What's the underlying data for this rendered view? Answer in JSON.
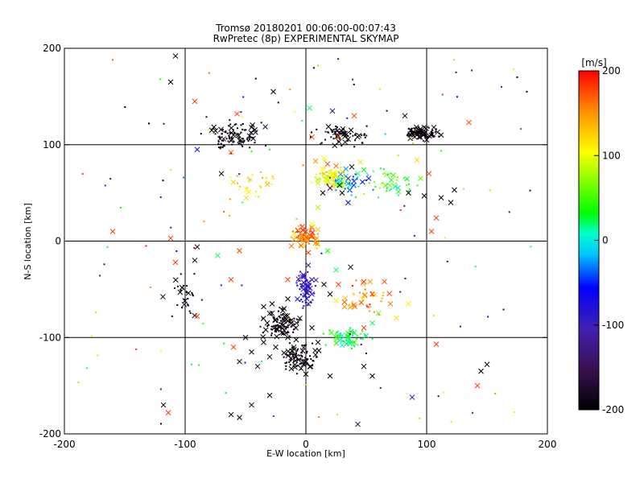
{
  "title_line1": "Tromsø 20180201 00:06:00-00:07:43",
  "title_line2": "RwPretec (8p) EXPERIMENTAL SKYMAP",
  "chart_data": {
    "type": "scatter",
    "title": "Tromsø 20180201 00:06:00-00:07:43",
    "subtitle": "RwPretec (8p) EXPERIMENTAL SKYMAP",
    "xlabel": "E-W location [km]",
    "ylabel": "N-S location [km]",
    "xlim": [
      -200,
      200
    ],
    "ylim": [
      -200,
      200
    ],
    "xticks": [
      -200,
      -100,
      0,
      100,
      200
    ],
    "yticks": [
      -200,
      -100,
      0,
      100,
      200
    ],
    "grid": true,
    "colorbar": {
      "label": "[m/s]",
      "range": [
        -200,
        200
      ],
      "ticks": [
        200,
        100,
        0,
        -100,
        -200
      ],
      "colormap": [
        "#000000",
        "#5a1e7a",
        "#0000ff",
        "#00ffff",
        "#00ff00",
        "#ffff00",
        "#ff8000",
        "#ff0000"
      ]
    },
    "markers": {
      "small": "dot",
      "large": "x"
    },
    "series": [
      {
        "cx": -160,
        "cy": 188,
        "v": 170,
        "m": "dot"
      },
      {
        "cx": -108,
        "cy": 192,
        "v": -200,
        "m": "x"
      },
      {
        "cx": -112,
        "cy": 165,
        "v": -200,
        "m": "x"
      },
      {
        "cx": 175,
        "cy": 170,
        "v": -200,
        "m": "dot"
      },
      {
        "cx": 162,
        "cy": 160,
        "v": -100,
        "m": "dot"
      },
      {
        "cx": 183,
        "cy": 155,
        "v": -200,
        "m": "dot"
      },
      {
        "cx": -130,
        "cy": 122,
        "v": -200,
        "m": "dot"
      },
      {
        "cx": -92,
        "cy": 145,
        "v": 180,
        "m": "x"
      },
      {
        "cx": -57,
        "cy": 132,
        "v": 180,
        "m": "x"
      },
      {
        "cx": -78,
        "cy": 115,
        "v": -200,
        "m": "x"
      },
      {
        "cx": -60,
        "cy": 110,
        "v": -200,
        "m": "x"
      },
      {
        "cx": -45,
        "cy": 118,
        "v": -200,
        "m": "x"
      },
      {
        "cx": -90,
        "cy": 95,
        "v": -60,
        "m": "x"
      },
      {
        "cx": -70,
        "cy": 70,
        "v": -200,
        "m": "x"
      },
      {
        "cx": -62,
        "cy": 92,
        "v": 170,
        "m": "x"
      },
      {
        "cx": -45,
        "cy": 93,
        "v": 40,
        "m": "dot"
      },
      {
        "cx": -30,
        "cy": 95,
        "v": 40,
        "m": "dot"
      },
      {
        "cx": 3,
        "cy": 138,
        "v": 20,
        "m": "x"
      },
      {
        "cx": 22,
        "cy": 135,
        "v": -140,
        "m": "x"
      },
      {
        "cx": 40,
        "cy": 130,
        "v": 180,
        "m": "x"
      },
      {
        "cx": -27,
        "cy": 155,
        "v": -200,
        "m": "x"
      },
      {
        "cx": 82,
        "cy": 130,
        "v": -200,
        "m": "x"
      },
      {
        "cx": 135,
        "cy": 123,
        "v": 180,
        "m": "x"
      },
      {
        "cx": 5,
        "cy": 108,
        "v": 180,
        "m": "x"
      },
      {
        "cx": 27,
        "cy": 108,
        "v": 180,
        "m": "x"
      },
      {
        "cx": 102,
        "cy": 70,
        "v": 180,
        "m": "x"
      },
      {
        "cx": 112,
        "cy": 110,
        "v": -200,
        "m": "x"
      },
      {
        "cx": 98,
        "cy": 118,
        "v": -200,
        "m": "x"
      },
      {
        "cx": 90,
        "cy": 108,
        "v": -200,
        "m": "x"
      },
      {
        "cx": 100,
        "cy": 105,
        "v": -200,
        "m": "x"
      },
      {
        "cx": 106,
        "cy": 118,
        "v": -200,
        "m": "x"
      },
      {
        "cx": 94,
        "cy": 112,
        "v": -200,
        "m": "x"
      },
      {
        "cx": 87,
        "cy": 115,
        "v": -200,
        "m": "x"
      },
      {
        "cx": 109,
        "cy": 113,
        "v": -200,
        "m": "x"
      },
      {
        "cx": 92,
        "cy": 84,
        "v": 120,
        "m": "x"
      },
      {
        "cx": 95,
        "cy": 65,
        "v": 60,
        "m": "x"
      },
      {
        "cx": 85,
        "cy": 50,
        "v": -200,
        "m": "x"
      },
      {
        "cx": 98,
        "cy": 47,
        "v": -200,
        "m": "x"
      },
      {
        "cx": 112,
        "cy": 45,
        "v": -200,
        "m": "x"
      },
      {
        "cx": 123,
        "cy": 53,
        "v": -200,
        "m": "x"
      },
      {
        "cx": 120,
        "cy": 40,
        "v": -200,
        "m": "x"
      },
      {
        "cx": 108,
        "cy": 24,
        "v": 180,
        "m": "x"
      },
      {
        "cx": 104,
        "cy": 10,
        "v": 180,
        "m": "x"
      },
      {
        "cx": 45,
        "cy": 82,
        "v": 120,
        "m": "x"
      },
      {
        "cx": 43,
        "cy": 70,
        "v": 20,
        "m": "x"
      },
      {
        "cx": 35,
        "cy": 65,
        "v": -100,
        "m": "x"
      },
      {
        "cx": 30,
        "cy": 72,
        "v": 90,
        "m": "x"
      },
      {
        "cx": 25,
        "cy": 78,
        "v": 160,
        "m": "x"
      },
      {
        "cx": 18,
        "cy": 80,
        "v": 180,
        "m": "x"
      },
      {
        "cx": 15,
        "cy": 70,
        "v": 130,
        "m": "x"
      },
      {
        "cx": 22,
        "cy": 65,
        "v": 120,
        "m": "x"
      },
      {
        "cx": 28,
        "cy": 58,
        "v": -200,
        "m": "x"
      },
      {
        "cx": 20,
        "cy": 55,
        "v": -160,
        "m": "x"
      },
      {
        "cx": 14,
        "cy": 50,
        "v": -200,
        "m": "x"
      },
      {
        "cx": 30,
        "cy": 50,
        "v": -200,
        "m": "x"
      },
      {
        "cx": 10,
        "cy": 60,
        "v": 90,
        "m": "x"
      },
      {
        "cx": 38,
        "cy": 77,
        "v": -200,
        "m": "x"
      },
      {
        "cx": 48,
        "cy": 74,
        "v": 30,
        "m": "x"
      },
      {
        "cx": 52,
        "cy": 65,
        "v": -100,
        "m": "x"
      },
      {
        "cx": 8,
        "cy": 83,
        "v": 150,
        "m": "x"
      },
      {
        "cx": 15,
        "cy": 86,
        "v": 100,
        "m": "x"
      },
      {
        "cx": 35,
        "cy": 40,
        "v": -60,
        "m": "x"
      },
      {
        "cx": -160,
        "cy": 10,
        "v": 180,
        "m": "x"
      },
      {
        "cx": -112,
        "cy": 3,
        "v": 180,
        "m": "x"
      },
      {
        "cx": -108,
        "cy": -22,
        "v": 180,
        "m": "x"
      },
      {
        "cx": -92,
        "cy": -20,
        "v": -200,
        "m": "x"
      },
      {
        "cx": -90,
        "cy": -6,
        "v": -200,
        "m": "x"
      },
      {
        "cx": -73,
        "cy": -15,
        "v": 20,
        "m": "x"
      },
      {
        "cx": -55,
        "cy": -10,
        "v": 180,
        "m": "x"
      },
      {
        "cx": -62,
        "cy": -40,
        "v": 180,
        "m": "x"
      },
      {
        "cx": -90,
        "cy": -78,
        "v": 180,
        "m": "x"
      },
      {
        "cx": -118,
        "cy": -170,
        "v": -200,
        "m": "x"
      },
      {
        "cx": -114,
        "cy": -178,
        "v": 180,
        "m": "x"
      },
      {
        "cx": -62,
        "cy": -180,
        "v": -200,
        "m": "x"
      },
      {
        "cx": -55,
        "cy": -183,
        "v": -200,
        "m": "x"
      },
      {
        "cx": -45,
        "cy": -170,
        "v": -200,
        "m": "x"
      },
      {
        "cx": -30,
        "cy": -160,
        "v": -200,
        "m": "x"
      },
      {
        "cx": -60,
        "cy": -110,
        "v": 180,
        "m": "x"
      },
      {
        "cx": -50,
        "cy": -100,
        "v": -200,
        "m": "x"
      },
      {
        "cx": -45,
        "cy": -115,
        "v": -200,
        "m": "x"
      },
      {
        "cx": -55,
        "cy": -125,
        "v": -200,
        "m": "x"
      },
      {
        "cx": -40,
        "cy": -130,
        "v": -200,
        "m": "x"
      },
      {
        "cx": -30,
        "cy": -120,
        "v": -200,
        "m": "x"
      },
      {
        "cx": -35,
        "cy": -105,
        "v": -200,
        "m": "x"
      },
      {
        "cx": -25,
        "cy": -110,
        "v": -200,
        "m": "x"
      },
      {
        "cx": -28,
        "cy": -65,
        "v": -200,
        "m": "x"
      },
      {
        "cx": -30,
        "cy": -75,
        "v": -200,
        "m": "x"
      },
      {
        "cx": -25,
        "cy": -82,
        "v": -200,
        "m": "x"
      },
      {
        "cx": -32,
        "cy": -85,
        "v": -200,
        "m": "x"
      },
      {
        "cx": -24,
        "cy": -92,
        "v": -200,
        "m": "x"
      },
      {
        "cx": -18,
        "cy": -70,
        "v": -200,
        "m": "x"
      },
      {
        "cx": -20,
        "cy": -95,
        "v": -200,
        "m": "x"
      },
      {
        "cx": -35,
        "cy": -68,
        "v": -200,
        "m": "x"
      },
      {
        "cx": -15,
        "cy": -100,
        "v": -200,
        "m": "x"
      },
      {
        "cx": -10,
        "cy": -110,
        "v": -200,
        "m": "x"
      },
      {
        "cx": -8,
        "cy": -120,
        "v": -200,
        "m": "x"
      },
      {
        "cx": 0,
        "cy": -125,
        "v": -200,
        "m": "x"
      },
      {
        "cx": -4,
        "cy": -132,
        "v": -200,
        "m": "x"
      },
      {
        "cx": 4,
        "cy": -130,
        "v": -200,
        "m": "x"
      },
      {
        "cx": 0,
        "cy": -138,
        "v": -200,
        "m": "x"
      },
      {
        "cx": -2,
        "cy": -128,
        "v": -200,
        "m": "x"
      },
      {
        "cx": 8,
        "cy": -118,
        "v": -200,
        "m": "x"
      },
      {
        "cx": 10,
        "cy": -105,
        "v": -200,
        "m": "x"
      },
      {
        "cx": 5,
        "cy": -90,
        "v": -200,
        "m": "x"
      },
      {
        "cx": -5,
        "cy": -80,
        "v": -200,
        "m": "x"
      },
      {
        "cx": -12,
        "cy": -85,
        "v": -200,
        "m": "x"
      },
      {
        "cx": -15,
        "cy": -60,
        "v": -200,
        "m": "x"
      },
      {
        "cx": 5,
        "cy": -55,
        "v": -80,
        "m": "x"
      },
      {
        "cx": -2,
        "cy": -50,
        "v": -100,
        "m": "x"
      },
      {
        "cx": -7,
        "cy": -60,
        "v": -90,
        "m": "x"
      },
      {
        "cx": 2,
        "cy": -65,
        "v": -120,
        "m": "x"
      },
      {
        "cx": 15,
        "cy": -45,
        "v": -200,
        "m": "x"
      },
      {
        "cx": 20,
        "cy": -55,
        "v": -200,
        "m": "x"
      },
      {
        "cx": 27,
        "cy": -45,
        "v": 180,
        "m": "x"
      },
      {
        "cx": 37,
        "cy": -27,
        "v": -200,
        "m": "x"
      },
      {
        "cx": 48,
        "cy": -42,
        "v": 180,
        "m": "x"
      },
      {
        "cx": 65,
        "cy": -42,
        "v": 180,
        "m": "x"
      },
      {
        "cx": 55,
        "cy": -55,
        "v": 180,
        "m": "x"
      },
      {
        "cx": 70,
        "cy": -65,
        "v": 160,
        "m": "x"
      },
      {
        "cx": 75,
        "cy": -80,
        "v": 120,
        "m": "x"
      },
      {
        "cx": 85,
        "cy": -65,
        "v": 110,
        "m": "x"
      },
      {
        "cx": 60,
        "cy": -75,
        "v": 60,
        "m": "x"
      },
      {
        "cx": 55,
        "cy": -85,
        "v": 20,
        "m": "x"
      },
      {
        "cx": 48,
        "cy": -90,
        "v": 180,
        "m": "x"
      },
      {
        "cx": 40,
        "cy": -95,
        "v": 20,
        "m": "x"
      },
      {
        "cx": 35,
        "cy": -100,
        "v": 30,
        "m": "x"
      },
      {
        "cx": 30,
        "cy": -98,
        "v": 10,
        "m": "x"
      },
      {
        "cx": 25,
        "cy": -100,
        "v": 40,
        "m": "x"
      },
      {
        "cx": 30,
        "cy": -108,
        "v": 0,
        "m": "x"
      },
      {
        "cx": 40,
        "cy": -105,
        "v": 40,
        "m": "x"
      },
      {
        "cx": 50,
        "cy": -98,
        "v": 20,
        "m": "x"
      },
      {
        "cx": 55,
        "cy": -140,
        "v": -200,
        "m": "x"
      },
      {
        "cx": 48,
        "cy": -130,
        "v": -200,
        "m": "x"
      },
      {
        "cx": 20,
        "cy": -140,
        "v": -200,
        "m": "x"
      },
      {
        "cx": 88,
        "cy": -162,
        "v": -100,
        "m": "x"
      },
      {
        "cx": 108,
        "cy": -107,
        "v": 180,
        "m": "x"
      },
      {
        "cx": 150,
        "cy": -128,
        "v": -200,
        "m": "x"
      },
      {
        "cx": 145,
        "cy": -135,
        "v": -200,
        "m": "x"
      },
      {
        "cx": 142,
        "cy": -150,
        "v": 180,
        "m": "x"
      },
      {
        "cx": 43,
        "cy": -190,
        "v": -140,
        "m": "x"
      },
      {
        "cx": 0,
        "cy": 10,
        "v": 180,
        "m": "x"
      },
      {
        "cx": 5,
        "cy": 5,
        "v": 180,
        "m": "x"
      },
      {
        "cx": -5,
        "cy": 3,
        "v": 140,
        "m": "x"
      },
      {
        "cx": -10,
        "cy": 8,
        "v": 120,
        "m": "x"
      },
      {
        "cx": 8,
        "cy": -2,
        "v": 160,
        "m": "x"
      },
      {
        "cx": -3,
        "cy": 15,
        "v": 180,
        "m": "x"
      },
      {
        "cx": 5,
        "cy": 18,
        "v": 100,
        "m": "x"
      },
      {
        "cx": -12,
        "cy": -5,
        "v": 160,
        "m": "x"
      },
      {
        "cx": 2,
        "cy": -12,
        "v": 180,
        "m": "x"
      },
      {
        "cx": 10,
        "cy": 12,
        "v": 130,
        "m": "x"
      },
      {
        "cx": 2,
        "cy": -25,
        "v": -120,
        "m": "x"
      },
      {
        "cx": -2,
        "cy": -35,
        "v": -100,
        "m": "x"
      },
      {
        "cx": 5,
        "cy": -40,
        "v": -140,
        "m": "x"
      },
      {
        "cx": 18,
        "cy": -10,
        "v": 40,
        "m": "x"
      },
      {
        "cx": 25,
        "cy": -30,
        "v": 20,
        "m": "x"
      },
      {
        "cx": 10,
        "cy": 35,
        "v": 80,
        "m": "x"
      },
      {
        "cx": -15,
        "cy": -40,
        "v": 180,
        "m": "x"
      }
    ],
    "point_clouds": [
      {
        "center": [
          -60,
          110
        ],
        "spread": [
          35,
          20
        ],
        "count": 90,
        "v": -200
      },
      {
        "center": [
          30,
          110
        ],
        "spread": [
          30,
          15
        ],
        "count": 70,
        "v": -200
      },
      {
        "center": [
          95,
          112
        ],
        "spread": [
          18,
          8
        ],
        "count": 90,
        "v": -200
      },
      {
        "center": [
          20,
          65
        ],
        "spread": [
          20,
          15
        ],
        "count": 90,
        "v": 100
      },
      {
        "center": [
          35,
          60
        ],
        "spread": [
          25,
          20
        ],
        "count": 40,
        "v": -20
      },
      {
        "center": [
          0,
          5
        ],
        "spread": [
          15,
          15
        ],
        "count": 80,
        "v": 150
      },
      {
        "center": [
          0,
          -50
        ],
        "spread": [
          10,
          25
        ],
        "count": 60,
        "v": -90
      },
      {
        "center": [
          -20,
          -85
        ],
        "spread": [
          20,
          20
        ],
        "count": 90,
        "v": -200
      },
      {
        "center": [
          -5,
          -120
        ],
        "spread": [
          20,
          20
        ],
        "count": 80,
        "v": -200
      },
      {
        "center": [
          35,
          -100
        ],
        "spread": [
          25,
          15
        ],
        "count": 50,
        "v": 20
      },
      {
        "center": [
          -100,
          -60
        ],
        "spread": [
          20,
          30
        ],
        "count": 30,
        "v": -200
      },
      {
        "center": [
          70,
          60
        ],
        "spread": [
          30,
          20
        ],
        "count": 40,
        "v": 40
      },
      {
        "center": [
          50,
          -60
        ],
        "spread": [
          30,
          30
        ],
        "count": 40,
        "v": 150
      },
      {
        "center": [
          -40,
          60
        ],
        "spread": [
          30,
          20
        ],
        "count": 30,
        "v": 120
      }
    ]
  }
}
